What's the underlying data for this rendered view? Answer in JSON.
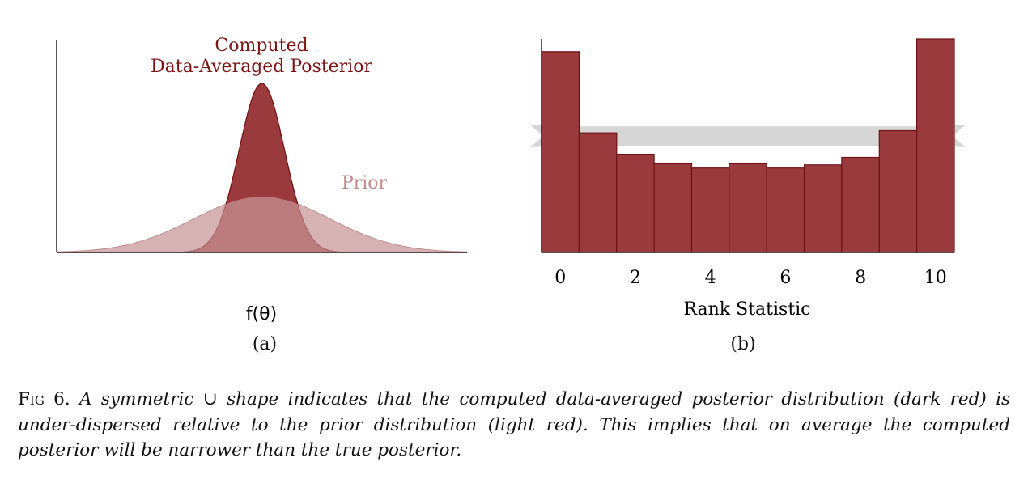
{
  "panel_a": {
    "posterior_label_line1": "Computed",
    "posterior_label_line2": "Data-Averaged Posterior",
    "prior_label": "Prior",
    "xlabel": "f(θ)",
    "sublabel": "(a)"
  },
  "panel_b": {
    "xlabel": "Rank Statistic",
    "sublabel": "(b)"
  },
  "caption": {
    "fig_label": "Fig 6.",
    "text": "A symmetric ∪ shape indicates that the computed data-averaged posterior distribution (dark red) is under-dispersed relative to the prior distribution (light red). This implies that on average the computed posterior will be narrower than the true posterior."
  },
  "colors": {
    "dark_red": "#9b3a3c",
    "dark_red_stroke": "#6e1214",
    "light_red": "#c99a9b",
    "prior_text": "#c08a8b",
    "band_gray": "#cfcfcf"
  },
  "chart_data": [
    {
      "type": "area",
      "series": [
        {
          "name": "Computed Data-Averaged Posterior",
          "mean": 0,
          "sd": 0.42,
          "peak": 1.0
        },
        {
          "name": "Prior",
          "mean": 0,
          "sd": 1.25,
          "peak": 0.33
        }
      ],
      "xlabel": "f(θ)",
      "xlim": [
        -3.8,
        3.8
      ]
    },
    {
      "type": "bar",
      "categories": [
        0,
        1,
        2,
        3,
        4,
        5,
        6,
        7,
        8,
        9,
        10
      ],
      "values": [
        94,
        56,
        46,
        41.5,
        39.5,
        41.5,
        39.5,
        41,
        44.5,
        57,
        100
      ],
      "xticks": [
        0,
        2,
        4,
        6,
        8,
        10
      ],
      "xlabel": "Rank Statistic",
      "ylim": [
        0,
        100
      ],
      "reference_band": {
        "low": 50,
        "high": 59
      }
    }
  ]
}
